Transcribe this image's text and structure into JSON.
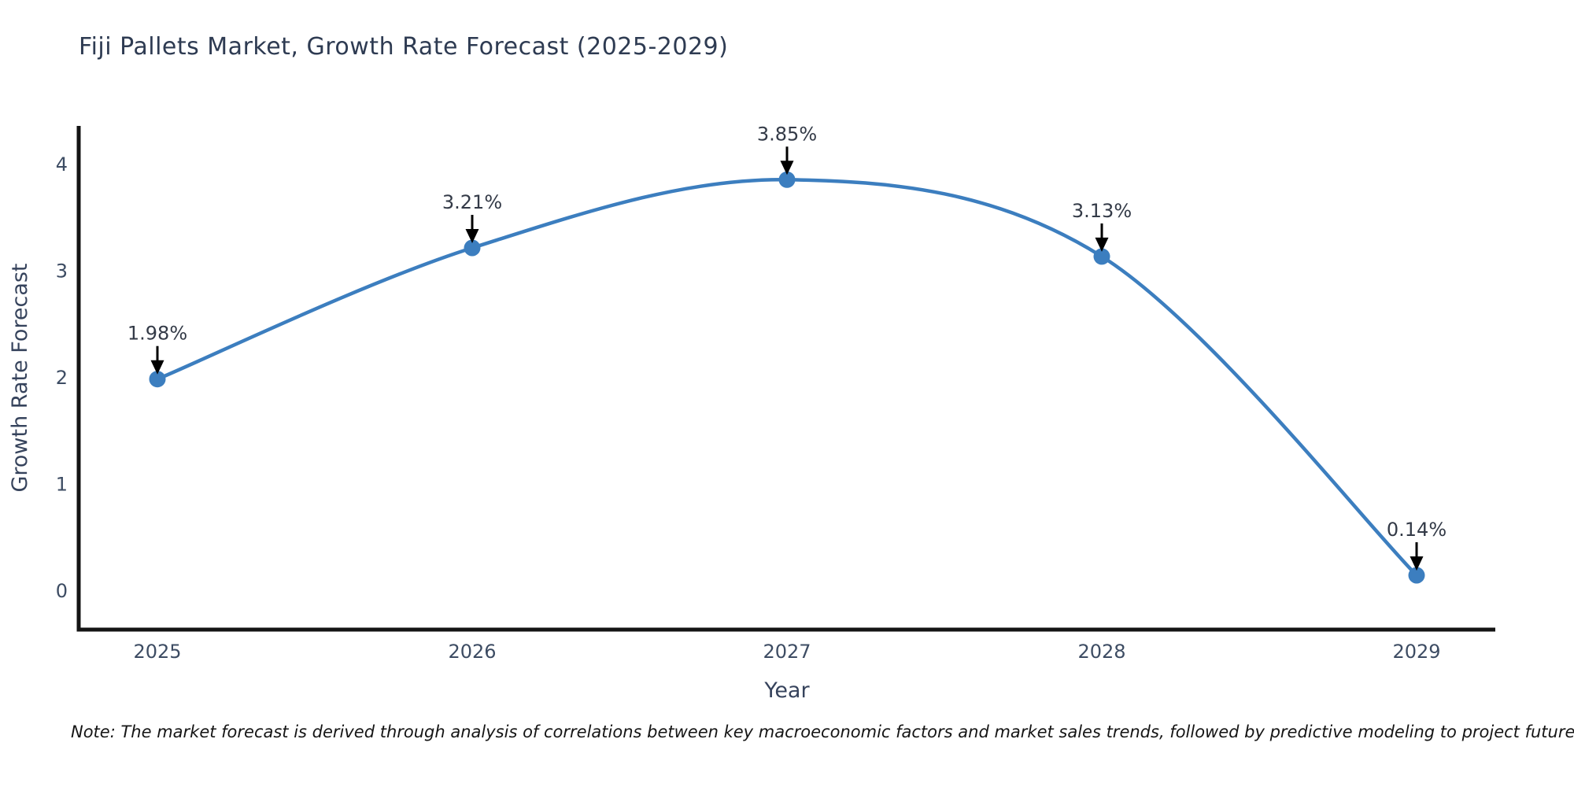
{
  "title": "Fiji Pallets Market, Growth Rate Forecast (2025-2029)",
  "note": "Note: The market forecast is derived through analysis of correlations between key macroeconomic factors and market sales trends, followed by predictive modeling to project future sales.",
  "chart_data": {
    "type": "line",
    "title": "Fiji Pallets Market, Growth Rate Forecast (2025-2029)",
    "xlabel": "Year",
    "ylabel": "Growth Rate Forecast",
    "categories": [
      "2025",
      "2026",
      "2027",
      "2028",
      "2029"
    ],
    "values": [
      1.98,
      3.21,
      3.85,
      3.13,
      0.14
    ],
    "point_labels": [
      "1.98%",
      "3.21%",
      "3.85%",
      "3.13%",
      "0.14%"
    ],
    "series": [
      {
        "name": "Growth Rate Forecast",
        "values": [
          1.98,
          3.21,
          3.85,
          3.13,
          0.14
        ]
      }
    ],
    "ylim": [
      0,
      4.4
    ],
    "yticks": [
      0,
      1,
      2,
      3,
      4
    ],
    "grid": false,
    "legend_position": "none",
    "line_shape": "spline",
    "annotation_style": "value label with down arrow to marker",
    "colors": {
      "line": "#3c7ebf",
      "marker": "#3c7ebf",
      "arrow": "#000000",
      "axis_line": "#141414",
      "tick_text": "#3d4c63",
      "axis_title_text": "#36435c",
      "chart_title_text": "#2e3b52",
      "note_text": "#151515",
      "background": "#ffffff"
    }
  }
}
